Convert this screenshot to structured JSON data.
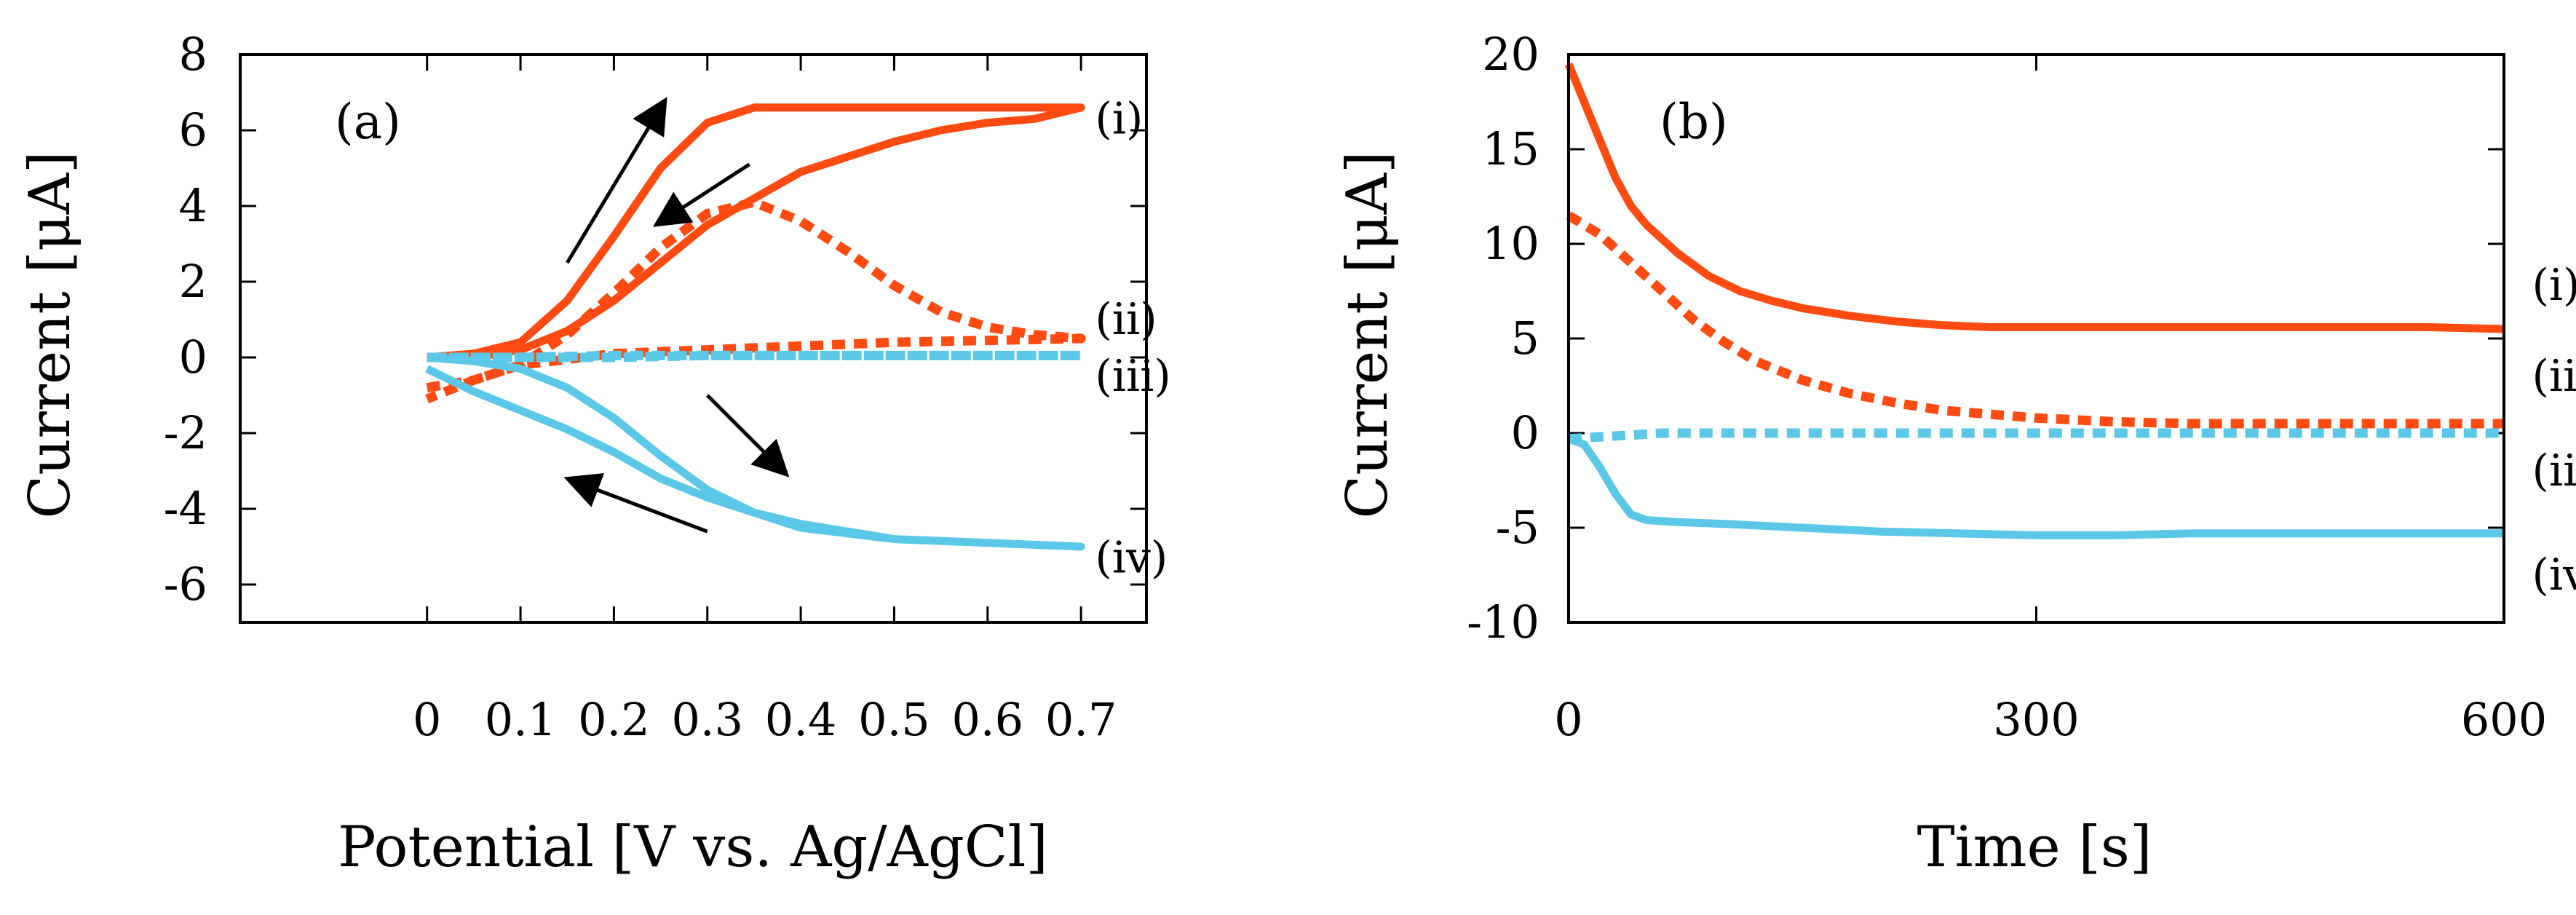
{
  "colors": {
    "orange": "#ff4a12",
    "cyan": "#5bc8e8",
    "arrow": "#000000",
    "frame": "#000000"
  },
  "chart_data": [
    {
      "type": "line",
      "panel_label": "(a)",
      "title": "",
      "xlabel": "Potential [V vs. Ag/AgCl]",
      "ylabel": "Current [μA]",
      "xlim": [
        -0.2,
        0.77
      ],
      "ylim": [
        -7,
        8
      ],
      "xticks": [
        0,
        0.1,
        0.2,
        0.3,
        0.4,
        0.5,
        0.6,
        0.7
      ],
      "xtick_labels": [
        "0",
        "0.1",
        "0.2",
        "0.3",
        "0.4",
        "0.5",
        "0.6",
        "0.7"
      ],
      "yticks": [
        -6,
        -4,
        -2,
        0,
        2,
        4,
        6,
        8
      ],
      "ytick_labels": [
        "-6",
        "-4",
        "-2",
        "0",
        "2",
        "4",
        "6",
        "8"
      ],
      "series": [
        {
          "name": "(i)",
          "color": "#ff4a12",
          "style": "solid",
          "x": [
            0,
            0.05,
            0.1,
            0.15,
            0.2,
            0.25,
            0.3,
            0.35,
            0.4,
            0.5,
            0.6,
            0.7,
            0.65,
            0.6,
            0.55,
            0.5,
            0.45,
            0.4,
            0.35,
            0.3,
            0.25,
            0.2,
            0.15,
            0.1,
            0.05,
            0
          ],
          "y": [
            0,
            0.1,
            0.4,
            1.5,
            3.2,
            5.0,
            6.2,
            6.6,
            6.6,
            6.6,
            6.6,
            6.6,
            6.3,
            6.2,
            6.0,
            5.7,
            5.3,
            4.9,
            4.2,
            3.5,
            2.5,
            1.5,
            0.7,
            0.2,
            0,
            0
          ]
        },
        {
          "name": "(ii)",
          "color": "#ff4a12",
          "style": "dashed",
          "x": [
            0,
            0.05,
            0.1,
            0.15,
            0.2,
            0.25,
            0.3,
            0.35,
            0.4,
            0.45,
            0.5,
            0.55,
            0.6,
            0.65,
            0.7,
            0.6,
            0.5,
            0.4,
            0.3,
            0.2,
            0.1,
            0.05,
            0
          ],
          "y": [
            -0.8,
            -0.6,
            -0.2,
            0.6,
            1.7,
            2.9,
            3.8,
            4.1,
            3.6,
            2.8,
            1.9,
            1.2,
            0.8,
            0.6,
            0.5,
            0.45,
            0.4,
            0.3,
            0.2,
            0.1,
            -0.2,
            -0.6,
            -1.1
          ]
        },
        {
          "name": "(iii)",
          "color": "#5bc8e8",
          "style": "dashed",
          "x": [
            0,
            0.1,
            0.2,
            0.3,
            0.4,
            0.5,
            0.6,
            0.7,
            0.6,
            0.5,
            0.4,
            0.3,
            0.2,
            0.1,
            0
          ],
          "y": [
            0,
            0,
            0,
            0.05,
            0.05,
            0.05,
            0.05,
            0.05,
            0.05,
            0.05,
            0.05,
            0.05,
            0.05,
            0,
            0
          ]
        },
        {
          "name": "(iv)",
          "color": "#5bc8e8",
          "style": "solid",
          "x": [
            0,
            0.05,
            0.1,
            0.15,
            0.2,
            0.25,
            0.3,
            0.35,
            0.4,
            0.5,
            0.6,
            0.7,
            0.6,
            0.5,
            0.45,
            0.4,
            0.35,
            0.3,
            0.25,
            0.2,
            0.15,
            0.1,
            0.05,
            0
          ],
          "y": [
            0,
            -0.1,
            -0.3,
            -0.8,
            -1.6,
            -2.6,
            -3.5,
            -4.1,
            -4.5,
            -4.8,
            -4.9,
            -5.0,
            -4.9,
            -4.8,
            -4.6,
            -4.4,
            -4.1,
            -3.7,
            -3.2,
            -2.5,
            -1.9,
            -1.4,
            -0.9,
            -0.3
          ]
        }
      ],
      "curve_labels": [
        {
          "text": "(i)",
          "x": 0.715,
          "y": 6.3
        },
        {
          "text": "(ii)",
          "x": 0.715,
          "y": 1.0
        },
        {
          "text": "(iii)",
          "x": 0.715,
          "y": -0.5
        },
        {
          "text": "(iv)",
          "x": 0.715,
          "y": -5.3
        }
      ],
      "arrows": [
        {
          "from": [
            0.15,
            2.5
          ],
          "to": [
            0.255,
            6.8
          ]
        },
        {
          "from": [
            0.345,
            5.1
          ],
          "to": [
            0.245,
            3.5
          ]
        },
        {
          "from": [
            0.3,
            -1.0
          ],
          "to": [
            0.385,
            -3.1
          ]
        },
        {
          "from": [
            0.3,
            -4.6
          ],
          "to": [
            0.15,
            -3.2
          ]
        }
      ]
    },
    {
      "type": "line",
      "panel_label": "(b)",
      "title": "",
      "xlabel": "Time [s]",
      "ylabel": "Current [μA]",
      "xlim": [
        0,
        600
      ],
      "ylim": [
        -10,
        20
      ],
      "xticks": [
        0,
        300,
        600
      ],
      "xtick_labels": [
        "0",
        "300",
        "600"
      ],
      "yticks": [
        -10,
        -5,
        0,
        5,
        10,
        15,
        20
      ],
      "ytick_labels": [
        "-10",
        "-5",
        "0",
        "5",
        "10",
        "15",
        "20"
      ],
      "series": [
        {
          "name": "(i)",
          "color": "#ff4a12",
          "style": "solid",
          "x": [
            0,
            10,
            20,
            30,
            40,
            50,
            70,
            90,
            110,
            130,
            150,
            180,
            210,
            240,
            270,
            300,
            350,
            400,
            450,
            500,
            550,
            600
          ],
          "y": [
            19.5,
            17.5,
            15.5,
            13.5,
            12.0,
            11.0,
            9.5,
            8.3,
            7.5,
            7.0,
            6.6,
            6.2,
            5.9,
            5.7,
            5.6,
            5.6,
            5.6,
            5.6,
            5.6,
            5.6,
            5.6,
            5.5
          ]
        },
        {
          "name": "(ii)",
          "color": "#ff4a12",
          "style": "dashed",
          "x": [
            0,
            20,
            40,
            60,
            80,
            100,
            120,
            150,
            180,
            210,
            240,
            270,
            300,
            350,
            400,
            450,
            500,
            550,
            600
          ],
          "y": [
            11.5,
            10.5,
            9.0,
            7.5,
            6.0,
            4.8,
            3.8,
            2.8,
            2.1,
            1.6,
            1.2,
            1.0,
            0.8,
            0.6,
            0.5,
            0.5,
            0.5,
            0.5,
            0.5
          ]
        },
        {
          "name": "(iii)",
          "color": "#5bc8e8",
          "style": "dashed",
          "x": [
            0,
            20,
            40,
            60,
            100,
            150,
            200,
            300,
            400,
            500,
            600
          ],
          "y": [
            -0.3,
            -0.2,
            -0.1,
            0,
            0,
            0,
            0,
            0,
            0,
            0,
            0
          ]
        },
        {
          "name": "(iv)",
          "color": "#5bc8e8",
          "style": "solid",
          "x": [
            0,
            10,
            20,
            30,
            40,
            50,
            70,
            100,
            150,
            200,
            250,
            300,
            350,
            400,
            450,
            500,
            550,
            600
          ],
          "y": [
            -0.3,
            -0.6,
            -1.8,
            -3.2,
            -4.3,
            -4.6,
            -4.7,
            -4.8,
            -5.0,
            -5.2,
            -5.3,
            -5.4,
            -5.4,
            -5.3,
            -5.3,
            -5.3,
            -5.3,
            -5.3
          ]
        }
      ],
      "curve_labels": [
        {
          "text": "(i)",
          "x": 618,
          "y": 7.8
        },
        {
          "text": "(ii)",
          "x": 618,
          "y": 3.0
        },
        {
          "text": "(iii)",
          "x": 618,
          "y": -2.0
        },
        {
          "text": "(iv)",
          "x": 618,
          "y": -7.5
        }
      ],
      "arrows": []
    }
  ]
}
